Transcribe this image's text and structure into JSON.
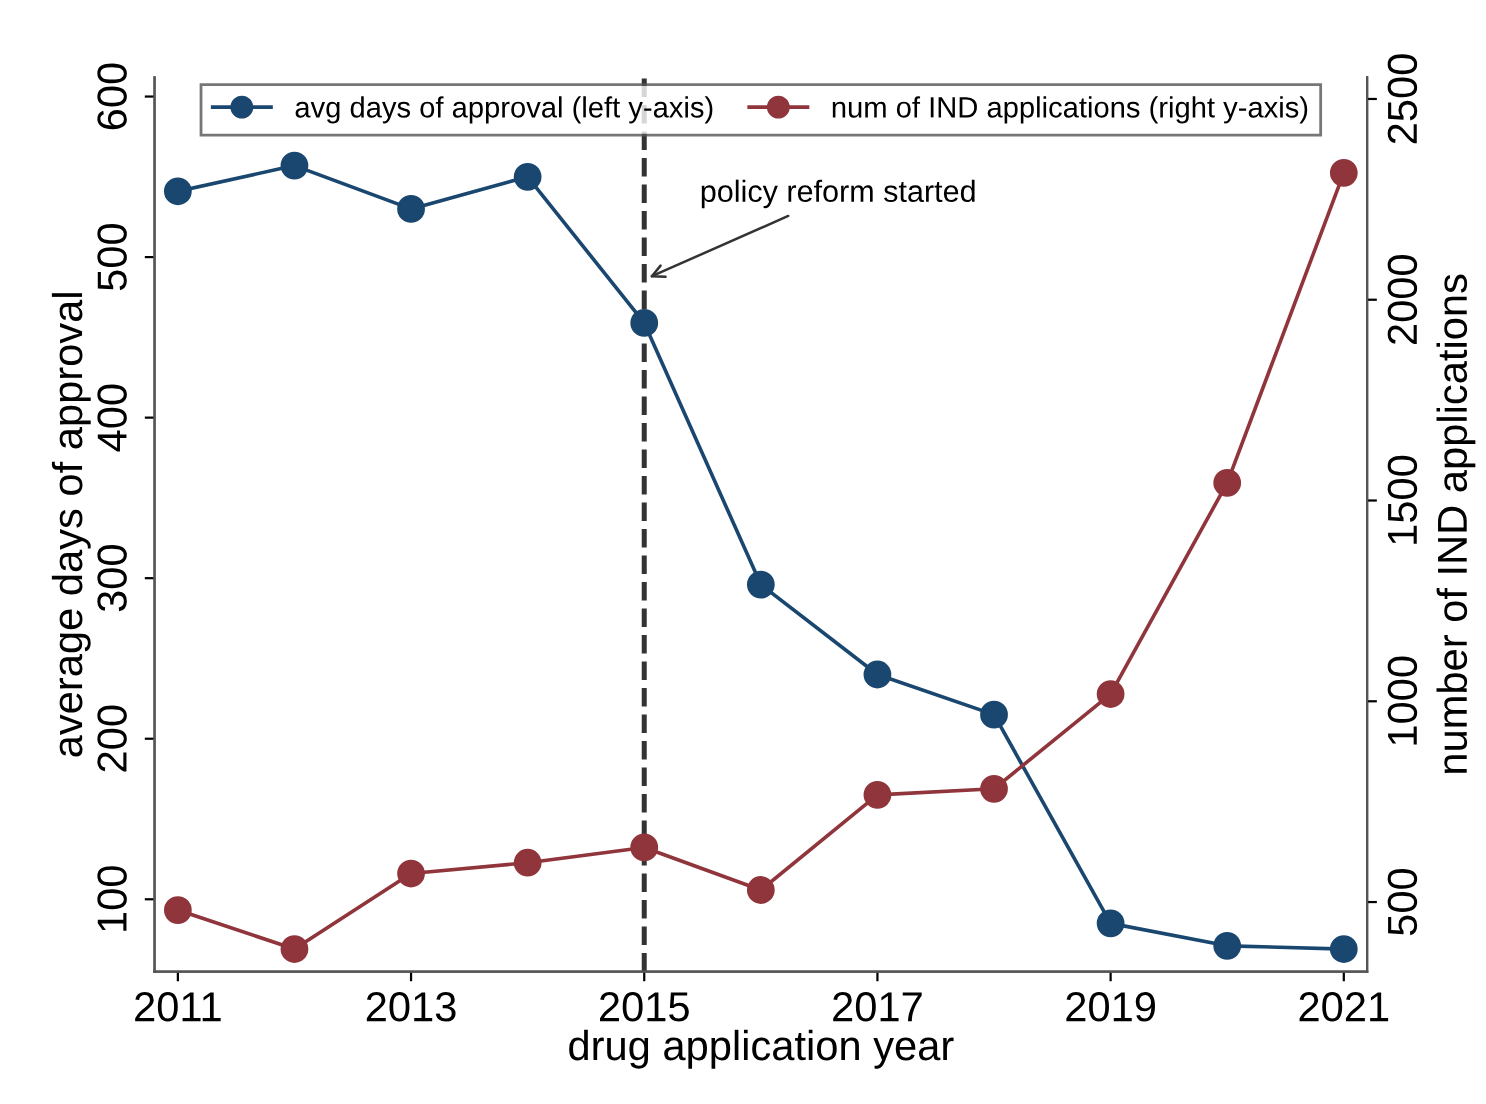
{
  "chart_data": {
    "type": "line",
    "xlabel": "drug application year",
    "ylabel": "average days of approval",
    "y2label": "number of IND applications",
    "x": [
      2011,
      2012,
      2013,
      2014,
      2015,
      2016,
      2017,
      2018,
      2019,
      2020,
      2021
    ],
    "series": [
      {
        "name": "avg days of approval (left y-axis)",
        "color": "#1a476f",
        "values": [
          541,
          557,
          530,
          550,
          459,
          296,
          240,
          215,
          85,
          71,
          69
        ]
      },
      {
        "name": "num of IND applications (right y-axis)",
        "color": "#90353b",
        "axis": "y2",
        "values": [
          480,
          383,
          571,
          598,
          636,
          530,
          767,
          782,
          1018,
          1544,
          2316
        ]
      }
    ],
    "xlim": [
      2010.8,
      2021.2
    ],
    "xticks": [
      2011,
      2013,
      2015,
      2017,
      2019,
      2021
    ],
    "ylim": [
      55,
      612
    ],
    "yticks": [
      100,
      200,
      300,
      400,
      500,
      600
    ],
    "y2lim": [
      327,
      2554
    ],
    "y2ticks": [
      500,
      1000,
      1500,
      2000,
      2500
    ],
    "ref_lines": [
      {
        "axis": "x",
        "value": 2015,
        "color": "#333333",
        "line_style": "dashed"
      }
    ],
    "annotations": [
      {
        "text": "policy reform started",
        "x": 2015,
        "y": 486
      }
    ],
    "marker": "circle",
    "line_style": "solid",
    "grid": false,
    "legend": "top"
  }
}
